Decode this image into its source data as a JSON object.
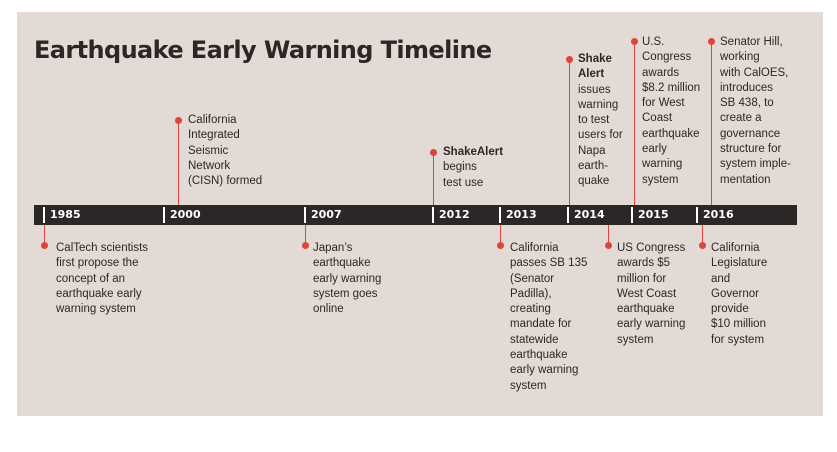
{
  "title": "Earthquake Early Warning Timeline",
  "colors": {
    "panel": "#e3dad5",
    "bar": "#2b2726",
    "accent": "#d9473c",
    "text": "#2b2726"
  },
  "years": [
    "1985",
    "2000",
    "2007",
    "2012",
    "2013",
    "2014",
    "2015",
    "2016"
  ],
  "events_above": [
    {
      "year": "2000",
      "text": "California\nIntegrated\nSeismic\nNetwork\n(CISN) formed"
    },
    {
      "year": "2012",
      "bold": "ShakeAlert",
      "text": "\nbegins\ntest use"
    },
    {
      "year": "2014",
      "bold": "Shake\nAlert",
      "text": "\nissues\nwarning\nto test\nusers for\nNapa\nearth-\nquake"
    },
    {
      "year": "2015",
      "text": "U.S.\nCongress\nawards\n$8.2 million\nfor West\nCoast\nearthquake\nearly\nwarning\nsystem"
    },
    {
      "year": "2016",
      "text": "Senator Hill,\nworking\nwith CalOES,\nintroduces\nSB 438, to\ncreate a\ngovernance\nstructure for\nsystem imple-\nmentation"
    }
  ],
  "events_below": [
    {
      "year": "1985",
      "text": "CalTech scientists\nfirst propose the\nconcept of an\nearthquake early\nwarning system"
    },
    {
      "year": "2007",
      "text": "Japan’s\nearthquake\nearly warning\nsystem goes\nonline"
    },
    {
      "year": "2013",
      "text": "California\npasses SB 135\n(Senator\nPadilla),\ncreating\nmandate for\nstatewide\nearthquake\nearly warning\nsystem"
    },
    {
      "year": "2015",
      "text": "US Congress\nawards $5\nmillion for\nWest Coast\nearthquake\nearly warning\nsystem"
    },
    {
      "year": "2016",
      "text": "California\nLegislature\nand\nGovernor\nprovide\n$10 million\nfor system"
    }
  ]
}
